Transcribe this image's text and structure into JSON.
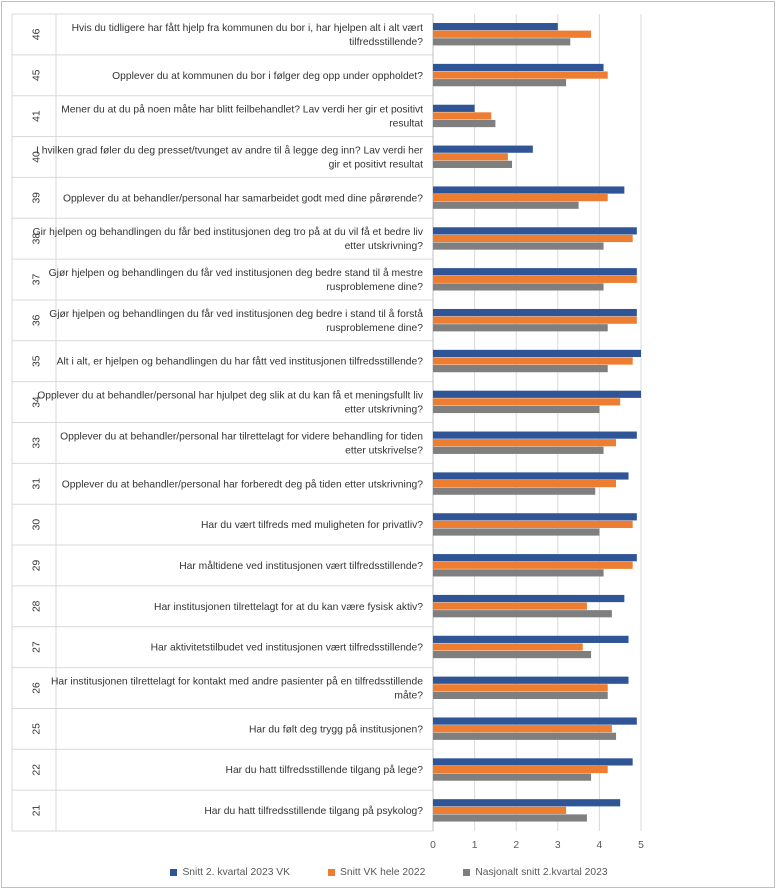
{
  "chart_data": {
    "type": "bar",
    "orientation": "horizontal",
    "xlim": [
      0,
      5
    ],
    "x_ticks": [
      "0",
      "1",
      "2",
      "3",
      "4",
      "5"
    ],
    "grid": "vertical gridlines",
    "legend_position": "bottom",
    "colors": [
      "#2F5597",
      "#ED7D31",
      "#7F7F7F"
    ],
    "rows": [
      {
        "num": "46",
        "label": [
          "Hvis du tidligere har fått hjelp fra kommunen du bor i, har hjelpen alt i alt vært",
          "tilfredsstillende?"
        ]
      },
      {
        "num": "45",
        "label": [
          "Opplever du at kommunen du bor i følger deg opp under oppholdet?"
        ]
      },
      {
        "num": "41",
        "label": [
          "Mener du at du på noen måte har blitt feilbehandlet? Lav verdi her gir et positivt",
          "resultat"
        ]
      },
      {
        "num": "40",
        "label": [
          "I hvilken grad føler du deg presset/tvunget av andre til å legge deg inn?  Lav verdi her",
          "gir et positivt resultat"
        ]
      },
      {
        "num": "39",
        "label": [
          "Opplever du at behandler/personal har samarbeidet godt med dine pårørende?"
        ]
      },
      {
        "num": "38",
        "label": [
          "Gir hjelpen og behandlingen du får bed institusjonen deg tro på at du vil få et bedre liv",
          "etter utskrivning?"
        ]
      },
      {
        "num": "37",
        "label": [
          "Gjør hjelpen og behandlingen du får ved institusjonen deg bedre stand til å mestre",
          "rusproblemene dine?"
        ]
      },
      {
        "num": "36",
        "label": [
          "Gjør hjelpen og behandlingen du får ved institusjonen deg bedre i stand til å forstå",
          "rusproblemene dine?"
        ]
      },
      {
        "num": "35",
        "label": [
          "Alt i alt, er hjelpen og behandlingen du har fått ved institusjonen tilfredsstillende?"
        ]
      },
      {
        "num": "34",
        "label": [
          "Opplever du at behandler/personal har hjulpet deg slik at du kan få et meningsfullt liv",
          "etter utskrivning?"
        ]
      },
      {
        "num": "33",
        "label": [
          "Opplever du at behandler/personal har tilrettelagt for videre behandling for tiden",
          "etter utskrivelse?"
        ]
      },
      {
        "num": "31",
        "label": [
          "Opplever du at behandler/personal har forberedt deg på tiden etter utskrivning?"
        ]
      },
      {
        "num": "30",
        "label": [
          "Har du vært tilfreds med muligheten for privatliv?"
        ]
      },
      {
        "num": "29",
        "label": [
          "Har måltidene ved institusjonen vært tilfredsstillende?"
        ]
      },
      {
        "num": "28",
        "label": [
          "Har institusjonen tilrettelagt for at du kan være fysisk aktiv?"
        ]
      },
      {
        "num": "27",
        "label": [
          "Har aktivitetstilbudet ved institusjonen vært tilfredsstillende?"
        ]
      },
      {
        "num": "26",
        "label": [
          "Har institusjonen tilrettelagt for kontakt med andre pasienter på en tilfredsstillende",
          "måte?"
        ]
      },
      {
        "num": "25",
        "label": [
          "Har du følt deg trygg på institusjonen?"
        ]
      },
      {
        "num": "22",
        "label": [
          "Har du hatt tilfredsstillende tilgang på lege?"
        ]
      },
      {
        "num": "21",
        "label": [
          "Har du hatt tilfredsstillende tilgang på psykolog?"
        ]
      }
    ],
    "series": [
      {
        "name": "Snitt 2. kvartal 2023 VK",
        "color": "#2F5597",
        "values": [
          3.0,
          4.1,
          1.0,
          2.4,
          4.6,
          4.9,
          4.9,
          4.9,
          5.0,
          5.0,
          4.9,
          4.7,
          4.9,
          4.9,
          4.6,
          4.7,
          4.7,
          4.9,
          4.8,
          4.5
        ]
      },
      {
        "name": "Snitt VK hele 2022",
        "color": "#ED7D31",
        "values": [
          3.8,
          4.2,
          1.4,
          1.8,
          4.2,
          4.8,
          4.9,
          4.9,
          4.8,
          4.5,
          4.4,
          4.4,
          4.8,
          4.8,
          3.7,
          3.6,
          4.2,
          4.3,
          4.2,
          3.2
        ]
      },
      {
        "name": "Nasjonalt snitt 2.kvartal 2023",
        "color": "#7F7F7F",
        "values": [
          3.3,
          3.2,
          1.5,
          1.9,
          3.5,
          4.1,
          4.1,
          4.2,
          4.2,
          4.0,
          4.1,
          3.9,
          4.0,
          4.1,
          4.3,
          3.8,
          4.2,
          4.4,
          3.8,
          3.7
        ]
      }
    ]
  }
}
